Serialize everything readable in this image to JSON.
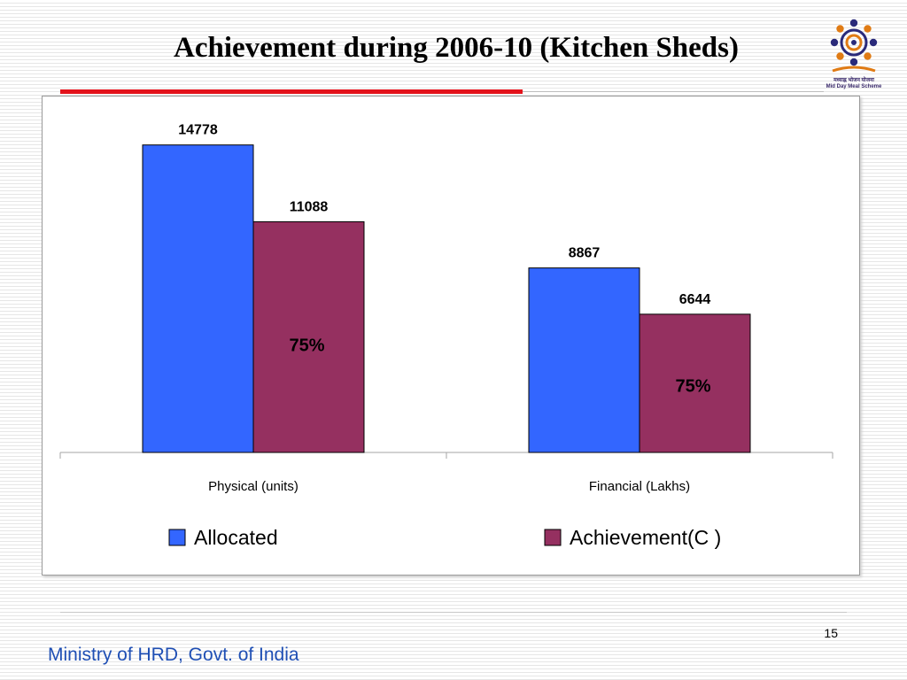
{
  "slide": {
    "title": "Achievement during 2006-10 (Kitchen Sheds)",
    "page_number": "15",
    "footer": "Ministry of HRD, Govt. of India",
    "logo": {
      "icon": "mid-day-meal-logo-icon",
      "caption_line1": "मध्याह्न भोजन योजना",
      "caption_line2": "Mid Day Meal Scheme"
    },
    "colors": {
      "title_rule": "#e3121b",
      "footer_text": "#1f4fb4"
    }
  },
  "chart_data": {
    "type": "bar",
    "title": "",
    "xlabel": "",
    "ylabel": "",
    "categories": [
      "Physical (units)",
      "Financial (Lakhs)"
    ],
    "series": [
      {
        "name": "Allocated",
        "values": [
          14778,
          8867
        ],
        "labels": [
          "14778",
          "8867"
        ],
        "color": "#3366ff"
      },
      {
        "name": "Achievement(C )",
        "values": [
          11088,
          6644
        ],
        "labels": [
          "11088",
          "6644"
        ],
        "color": "#953060"
      }
    ],
    "annotations": [
      "75%",
      "75%"
    ],
    "ylim": [
      0,
      16000
    ],
    "grid": false,
    "legend": "bottom"
  }
}
